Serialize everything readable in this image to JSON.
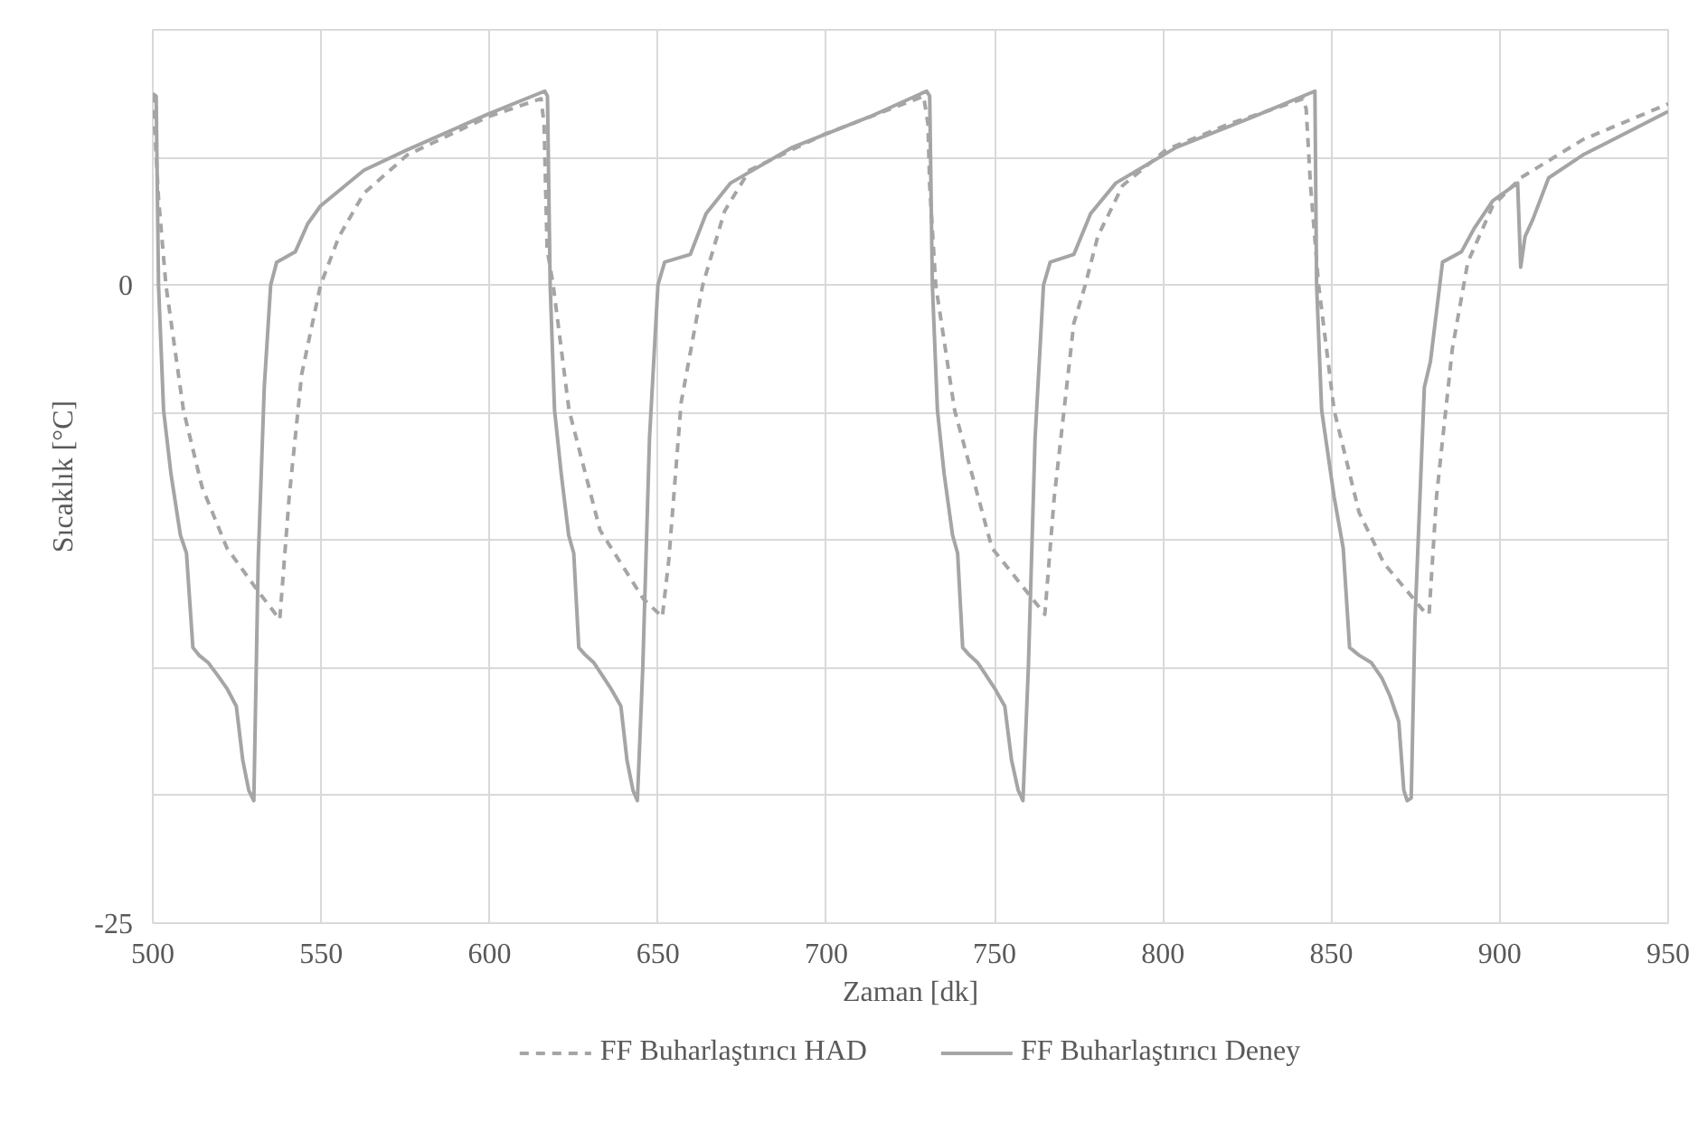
{
  "chart_data": {
    "type": "line",
    "xlabel": "Zaman [dk]",
    "ylabel": "Sıcaklık [°C]",
    "xlim": [
      500,
      950
    ],
    "xticks": [
      500,
      550,
      600,
      650,
      700,
      750,
      800,
      850,
      900,
      950
    ],
    "ylim": [
      -25,
      10
    ],
    "yticks": [
      -25,
      {
        "value": -20,
        "label": null
      },
      {
        "value": -15,
        "label": null
      },
      {
        "value": -10,
        "label": null
      },
      {
        "value": -5,
        "label": null
      },
      0,
      {
        "value": 5,
        "label": null
      },
      {
        "value": 10,
        "label": null
      }
    ],
    "grid": true,
    "legend": "bottom",
    "marker": "none",
    "series": [
      {
        "name": "FF Buharlaştırıcı HAD",
        "color": "#a5a5a5",
        "line_style": "dashed",
        "x": [
          500,
          501.7,
          503.9,
          509.1,
          514.6,
          522,
          531.3,
          537.7,
          540.5,
          544.2,
          549.8,
          555.3,
          562.7,
          575.6,
          599.6,
          615.3,
          616.2,
          617.1,
          618.9,
          623.6,
          632.8,
          645.7,
          651.3,
          653.2,
          656.9,
          663.3,
          669.8,
          677.2,
          699.3,
          728.9,
          730.2,
          730.7,
          732.5,
          738.1,
          749.2,
          764.9,
          767.7,
          773.5,
          776.9,
          780.6,
          788,
          800.9,
          819.4,
          841.6,
          842.5,
          843.8,
          846.2,
          850.8,
          858.2,
          865.6,
          877.6,
          879,
          881.2,
          885.9,
          890.5,
          897.9,
          906.2,
          924.7,
          950
        ],
        "values": [
          7.5,
          3.4,
          0,
          -4.9,
          -7.9,
          -10.3,
          -12.0,
          -13.1,
          -8.3,
          -3.5,
          0,
          1.9,
          3.6,
          5.1,
          6.6,
          7.3,
          6.3,
          1.4,
          0,
          -4.9,
          -9.6,
          -12.3,
          -13.0,
          -10.8,
          -4.6,
          0,
          2.9,
          4.5,
          5.9,
          7.4,
          6.3,
          3.9,
          0,
          -4.9,
          -10.3,
          -12.9,
          -8.3,
          -1.5,
          0,
          1.9,
          3.9,
          5.3,
          6.3,
          7.3,
          6.9,
          3.9,
          0,
          -4.9,
          -8.9,
          -10.9,
          -12.8,
          -12.9,
          -8.3,
          -2.5,
          0.9,
          3.1,
          4.2,
          5.7,
          7.1
        ]
      },
      {
        "name": "FF Buharlaştırıcı Deney",
        "color": "#a5a5a5",
        "line_style": "solid",
        "x": [
          500,
          501,
          501.7,
          503.2,
          505.4,
          508.2,
          510,
          511.9,
          513.7,
          516.5,
          519.3,
          522,
          524.8,
          526.7,
          528.5,
          530,
          531.3,
          533.1,
          535,
          536.8,
          542.3,
          546,
          549.8,
          562.7,
          575.6,
          599.6,
          616.4,
          617.2,
          618,
          619.3,
          621.3,
          623.5,
          625,
          626.5,
          628.5,
          631,
          633.5,
          636,
          639,
          640.8,
          642.6,
          643.9,
          645.5,
          647.5,
          650,
          652,
          659.6,
          664.3,
          671.6,
          690,
          713,
          729.8,
          730.7,
          731.5,
          733,
          735,
          737.5,
          739,
          740.5,
          742.5,
          745,
          747.5,
          750,
          753,
          755,
          757,
          758.4,
          760,
          762,
          764.5,
          766.5,
          773.5,
          778.5,
          786,
          804,
          827,
          845.1,
          845.6,
          847.1,
          850.8,
          853.5,
          855.4,
          858.2,
          861.9,
          865,
          867.4,
          870,
          871.5,
          872.5,
          873.7,
          874.8,
          877.6,
          879.4,
          883,
          888.6,
          892.3,
          897.9,
          905.3,
          906.2,
          907.5,
          909.9,
          914.5,
          924.7,
          950
        ],
        "values": [
          7.5,
          7.4,
          0,
          -4.9,
          -7.4,
          -9.8,
          -10.5,
          -14.2,
          -14.5,
          -14.8,
          -15.3,
          -15.8,
          -16.5,
          -18.6,
          -19.8,
          -20.2,
          -10.8,
          -4.0,
          0,
          0.9,
          1.3,
          2.4,
          3.1,
          4.5,
          5.3,
          6.7,
          7.6,
          7.4,
          0,
          -4.9,
          -7.4,
          -9.8,
          -10.5,
          -14.2,
          -14.5,
          -14.8,
          -15.3,
          -15.8,
          -16.5,
          -18.6,
          -19.8,
          -20.2,
          -15.0,
          -6.0,
          0,
          0.9,
          1.2,
          2.8,
          4.0,
          5.4,
          6.6,
          7.6,
          7.4,
          0,
          -4.9,
          -7.4,
          -9.8,
          -10.5,
          -14.2,
          -14.5,
          -14.8,
          -15.3,
          -15.8,
          -16.5,
          -18.6,
          -19.8,
          -20.2,
          -15.0,
          -6.0,
          0,
          0.9,
          1.2,
          2.8,
          4.0,
          5.4,
          6.6,
          7.6,
          0,
          -4.9,
          -8.3,
          -10.3,
          -14.2,
          -14.5,
          -14.8,
          -15.4,
          -16.1,
          -17.1,
          -19.8,
          -20.2,
          -20.1,
          -13.2,
          -4.0,
          -3.0,
          0.9,
          1.3,
          2.2,
          3.3,
          4.0,
          0.7,
          1.9,
          2.6,
          4.2,
          5.1,
          6.8
        ]
      }
    ]
  }
}
